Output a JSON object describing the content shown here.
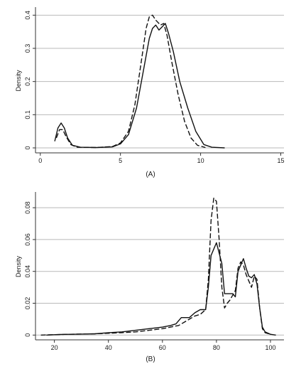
{
  "captions": {
    "panel_a": "(A)",
    "panel_b": "(B)"
  },
  "colors": {
    "grid": "#b9b9b9",
    "axis": "#333333",
    "line": "#111111"
  },
  "chart_data": [
    {
      "type": "line",
      "caption": "(A)",
      "ylabel": "Density",
      "xlim": [
        -0.3,
        15.2
      ],
      "ylim": [
        -0.015,
        0.42
      ],
      "xticks": [
        0,
        5,
        10,
        15
      ],
      "yticks": [
        0,
        0.1,
        0.2,
        0.3,
        0.4
      ],
      "ytick_labels": [
        "0",
        "0.1",
        "0.2",
        "0.3",
        "0.4"
      ],
      "grid": "horizontal",
      "series": [
        {
          "style": "solid",
          "points": [
            [
              0.9,
              0.02
            ],
            [
              1.1,
              0.06
            ],
            [
              1.3,
              0.075
            ],
            [
              1.5,
              0.06
            ],
            [
              1.7,
              0.03
            ],
            [
              2.0,
              0.008
            ],
            [
              2.5,
              0.002
            ],
            [
              3.5,
              0.001
            ],
            [
              4.5,
              0.003
            ],
            [
              5.0,
              0.012
            ],
            [
              5.5,
              0.04
            ],
            [
              6.0,
              0.12
            ],
            [
              6.5,
              0.25
            ],
            [
              6.8,
              0.33
            ],
            [
              7.0,
              0.36
            ],
            [
              7.2,
              0.37
            ],
            [
              7.4,
              0.355
            ],
            [
              7.6,
              0.365
            ],
            [
              7.8,
              0.375
            ],
            [
              8.0,
              0.345
            ],
            [
              8.3,
              0.29
            ],
            [
              8.7,
              0.2
            ],
            [
              9.2,
              0.12
            ],
            [
              9.7,
              0.05
            ],
            [
              10.2,
              0.01
            ],
            [
              10.7,
              0.002
            ],
            [
              11.5,
              0.0
            ]
          ]
        },
        {
          "style": "dashed",
          "points": [
            [
              1.0,
              0.03
            ],
            [
              1.2,
              0.055
            ],
            [
              1.4,
              0.055
            ],
            [
              1.6,
              0.035
            ],
            [
              1.9,
              0.01
            ],
            [
              2.3,
              0.002
            ],
            [
              3.5,
              0.001
            ],
            [
              4.5,
              0.004
            ],
            [
              5.0,
              0.015
            ],
            [
              5.5,
              0.05
            ],
            [
              5.9,
              0.13
            ],
            [
              6.3,
              0.26
            ],
            [
              6.6,
              0.36
            ],
            [
              6.8,
              0.395
            ],
            [
              7.0,
              0.4
            ],
            [
              7.2,
              0.385
            ],
            [
              7.5,
              0.37
            ],
            [
              7.7,
              0.375
            ],
            [
              7.9,
              0.34
            ],
            [
              8.2,
              0.26
            ],
            [
              8.6,
              0.16
            ],
            [
              9.0,
              0.08
            ],
            [
              9.4,
              0.03
            ],
            [
              9.8,
              0.008
            ],
            [
              10.3,
              0.001
            ]
          ]
        }
      ]
    },
    {
      "type": "line",
      "caption": "(B)",
      "ylabel": "Density",
      "xlim": [
        13,
        105
      ],
      "ylim": [
        -0.003,
        0.089
      ],
      "xticks": [
        20,
        40,
        60,
        80,
        100
      ],
      "yticks": [
        0,
        0.02,
        0.04,
        0.06,
        0.08
      ],
      "ytick_labels": [
        "0",
        "0.02",
        "0.04",
        "0.06",
        "0.08"
      ],
      "grid": "horizontal",
      "series": [
        {
          "style": "solid",
          "points": [
            [
              17,
              0.0
            ],
            [
              22,
              0.0004
            ],
            [
              30,
              0.0006
            ],
            [
              35,
              0.0008
            ],
            [
              40,
              0.0015
            ],
            [
              45,
              0.002
            ],
            [
              50,
              0.003
            ],
            [
              55,
              0.004
            ],
            [
              60,
              0.005
            ],
            [
              63,
              0.006
            ],
            [
              65,
              0.007
            ],
            [
              67,
              0.011
            ],
            [
              70,
              0.011
            ],
            [
              72,
              0.014
            ],
            [
              74,
              0.016
            ],
            [
              76,
              0.016
            ],
            [
              77,
              0.03
            ],
            [
              78,
              0.05
            ],
            [
              80,
              0.058
            ],
            [
              82,
              0.045
            ],
            [
              83,
              0.026
            ],
            [
              85,
              0.026
            ],
            [
              86,
              0.026
            ],
            [
              87,
              0.024
            ],
            [
              88,
              0.04
            ],
            [
              90,
              0.048
            ],
            [
              91,
              0.042
            ],
            [
              92,
              0.037
            ],
            [
              93,
              0.036
            ],
            [
              94,
              0.038
            ],
            [
              95,
              0.032
            ],
            [
              96,
              0.017
            ],
            [
              97,
              0.005
            ],
            [
              98,
              0.002
            ],
            [
              100,
              0.0005
            ],
            [
              102,
              0.0
            ]
          ]
        },
        {
          "style": "dashed",
          "points": [
            [
              15,
              0.0
            ],
            [
              25,
              0.0005
            ],
            [
              35,
              0.0008
            ],
            [
              45,
              0.0015
            ],
            [
              50,
              0.002
            ],
            [
              55,
              0.003
            ],
            [
              60,
              0.004
            ],
            [
              63,
              0.005
            ],
            [
              66,
              0.006
            ],
            [
              68,
              0.008
            ],
            [
              70,
              0.01
            ],
            [
              72,
              0.012
            ],
            [
              74,
              0.013
            ],
            [
              76,
              0.016
            ],
            [
              77,
              0.035
            ],
            [
              78,
              0.072
            ],
            [
              79,
              0.086
            ],
            [
              80,
              0.084
            ],
            [
              81,
              0.06
            ],
            [
              82,
              0.03
            ],
            [
              83,
              0.017
            ],
            [
              84,
              0.02
            ],
            [
              85,
              0.022
            ],
            [
              86,
              0.025
            ],
            [
              87,
              0.028
            ],
            [
              88,
              0.042
            ],
            [
              89,
              0.046
            ],
            [
              90,
              0.044
            ],
            [
              91,
              0.038
            ],
            [
              92,
              0.034
            ],
            [
              93,
              0.03
            ],
            [
              94,
              0.037
            ],
            [
              95,
              0.035
            ],
            [
              96,
              0.017
            ],
            [
              97,
              0.004
            ],
            [
              98,
              0.0015
            ],
            [
              100,
              0.0005
            ]
          ]
        }
      ]
    }
  ]
}
